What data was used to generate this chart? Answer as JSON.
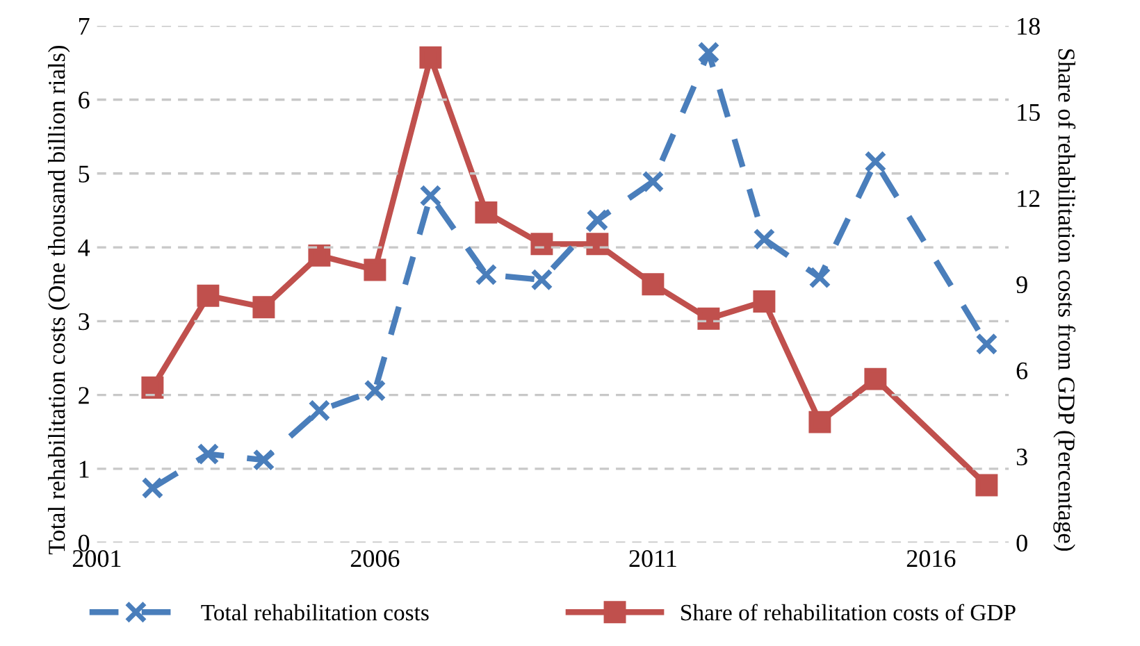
{
  "chart_data": {
    "type": "line",
    "ylabel": "Total rehabilitation costs (One thousand billion rials)",
    "y2label": "Share of rehabilitation costs from GDP (Percentage)",
    "xlim": [
      2001,
      2017.4
    ],
    "xticks": [
      2001,
      2006,
      2011,
      2016
    ],
    "ylim": [
      0,
      7
    ],
    "yticks": [
      0,
      1,
      2,
      3,
      4,
      5,
      6,
      7
    ],
    "y2lim": [
      0,
      18
    ],
    "y2ticks": [
      0,
      3,
      6,
      9,
      12,
      15,
      18
    ],
    "grid": "y",
    "legend": "bottom",
    "series": [
      {
        "name": "Total rehabilitation costs",
        "color": "#4a7ebb",
        "marker": "cross",
        "line_style": "dashed",
        "x": [
          2002,
          2003,
          2004,
          2005,
          2006,
          2007,
          2008,
          2009,
          2010,
          2011,
          2012,
          2013,
          2014,
          2015,
          2017
        ],
        "values": [
          0.74,
          1.2,
          1.12,
          1.79,
          2.06,
          4.7,
          3.63,
          3.56,
          4.37,
          4.89,
          6.64,
          4.11,
          3.59,
          5.16,
          2.69
        ]
      },
      {
        "name": "Share of rehabilitation costs of GDP",
        "color": "#c0504d",
        "marker": "square",
        "line_style": "solid",
        "axis": "y2",
        "x": [
          2002,
          2003,
          2004,
          2005,
          2006,
          2007,
          2008,
          2009,
          2010,
          2011,
          2012,
          2013,
          2014,
          2015,
          2017
        ],
        "values": [
          5.4,
          8.6,
          8.2,
          10.0,
          9.5,
          16.9,
          11.5,
          10.4,
          10.4,
          9.0,
          7.8,
          8.4,
          4.2,
          5.7,
          2.0
        ]
      }
    ]
  }
}
